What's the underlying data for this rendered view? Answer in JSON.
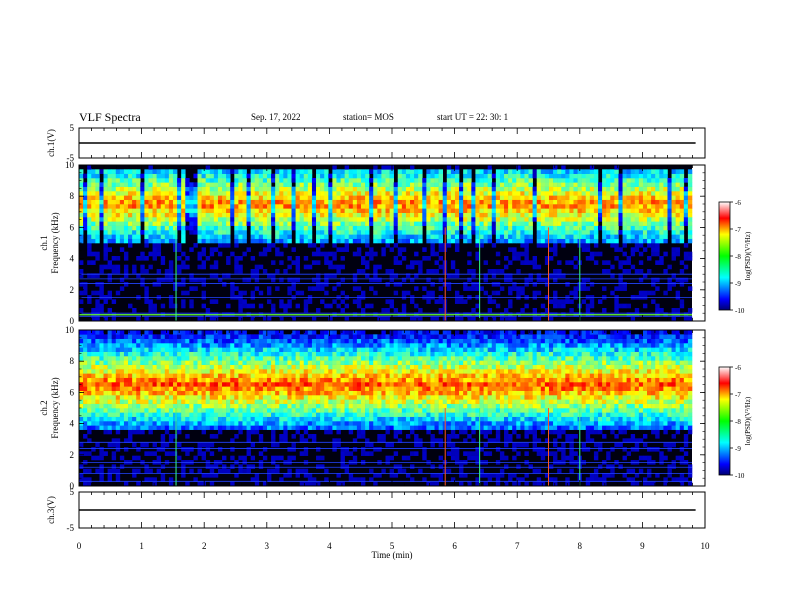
{
  "header": {
    "title": "VLF Spectra",
    "date": "Sep. 17, 2022",
    "station": "station= MOS",
    "start": "start  UT =   22: 30: 1"
  },
  "chart_data": [
    {
      "type": "line",
      "panel": "ch1 waveform",
      "ylabel": "ch.1(V)",
      "ylim": [
        -5,
        5
      ],
      "yticks": [
        "5",
        "-5"
      ],
      "series": [
        {
          "x": [
            0,
            9.85
          ],
          "values": [
            0,
            0
          ]
        }
      ]
    },
    {
      "type": "heatmap",
      "panel": "ch1 spectrogram",
      "ylabel": "ch.1\nFrequency (kHz)",
      "ylim": [
        0,
        10
      ],
      "yticks": [
        "0",
        "2",
        "4",
        "6",
        "8",
        "10"
      ],
      "xlim": [
        0,
        9.85
      ],
      "colorbar": {
        "label": "log(PSD)(V²/Hz)",
        "range": [
          -10,
          -6
        ],
        "ticks": [
          "-6",
          "-7",
          "-8",
          "-9",
          "-10"
        ]
      },
      "band_khz": [
        5,
        10
      ],
      "band_log_psd": [
        -9,
        -7
      ],
      "peak_log_psd": -6.8,
      "background_log_psd": -10,
      "narrowband_lines_khz": [
        0.3,
        0.5,
        1.5,
        2.4,
        2.7,
        3.0
      ],
      "impulse_times_min": [
        1.55,
        5.85,
        6.4,
        7.5,
        8.0
      ]
    },
    {
      "type": "heatmap",
      "panel": "ch2 spectrogram",
      "ylabel": "ch.2\nFrequency (kHz)",
      "ylim": [
        0,
        10
      ],
      "yticks": [
        "0",
        "2",
        "4",
        "6",
        "8",
        "10"
      ],
      "xlim": [
        0,
        9.85
      ],
      "colorbar": {
        "label": "log(PSD)(V²/Hz)",
        "range": [
          -10,
          -6
        ],
        "ticks": [
          "-6",
          "-7",
          "-8",
          "-9",
          "-10"
        ]
      },
      "band_khz": [
        4,
        10
      ],
      "band_log_psd": [
        -8.6,
        -6.8
      ],
      "peak_log_psd": -6.8,
      "peak_khz": 6.5,
      "background_log_psd": -10,
      "narrowband_lines_khz": [
        0.3,
        0.8,
        1.2,
        1.5,
        2.4,
        2.8
      ],
      "impulse_times_min": [
        1.55,
        5.85,
        6.4,
        7.5,
        8.0
      ]
    },
    {
      "type": "line",
      "panel": "ch3 waveform",
      "ylabel": "ch.3(V)",
      "ylim": [
        -5,
        5
      ],
      "yticks": [
        "5",
        "-5"
      ],
      "series": [
        {
          "x": [
            0,
            9.85
          ],
          "values": [
            0,
            0
          ]
        }
      ]
    }
  ],
  "xaxis": {
    "label": "Time  (min)",
    "ticks": [
      "0",
      "1",
      "2",
      "3",
      "4",
      "5",
      "6",
      "7",
      "8",
      "9",
      "10"
    ],
    "xlim": [
      0,
      10
    ]
  }
}
